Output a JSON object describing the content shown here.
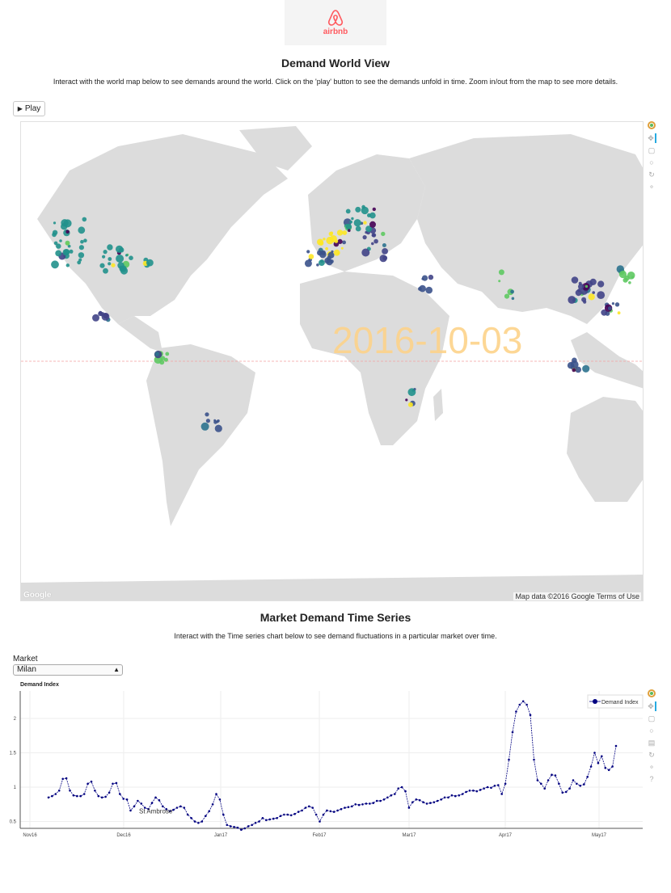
{
  "logo": {
    "text": "airbnb",
    "icon": "airbnb-belo-icon",
    "color": "#ff5a5f"
  },
  "world": {
    "title": "Demand World View",
    "description": "Interact with the world map below to see demands around the world. Click on the 'play' button to see the demands unfold in time. Zoom in/out from the map to see more details.",
    "play_label": "Play",
    "date": "2016-10-03",
    "credit": "Map data ©2016 Google  Terms of Use",
    "google": "Google",
    "tools": [
      "bokeh-logo-icon",
      "pan-icon",
      "box-zoom-icon",
      "wheel-zoom-icon",
      "reset-icon",
      "hover-icon"
    ]
  },
  "timeseries": {
    "title": "Market Demand Time Series",
    "description": "Interact with the Time series chart below to see demand fluctuations in a particular market over time.",
    "market_label": "Market",
    "market_value": "Milan",
    "tools": [
      "bokeh-logo-icon",
      "pan-icon",
      "box-zoom-icon",
      "wheel-zoom-icon",
      "save-icon",
      "reset-icon",
      "hover-icon",
      "help-icon"
    ]
  },
  "chart_data": {
    "type": "line",
    "title": "Demand Index",
    "series": [
      {
        "name": "Demand Index",
        "color": "#000080"
      }
    ],
    "annotation": "St Ambrose",
    "x_ticks": [
      "Nov16",
      "Dec16",
      "Jan17",
      "Feb17",
      "Mar17",
      "Apr17",
      "May17"
    ],
    "y_ticks": [
      "0.5",
      "1",
      "1.5",
      "2"
    ],
    "ylim": [
      0.4,
      2.4
    ],
    "x_start": "2016-11-08",
    "x_end": "2017-05-15",
    "values": [
      0.85,
      0.87,
      0.9,
      0.95,
      1.12,
      1.13,
      0.95,
      0.88,
      0.87,
      0.87,
      0.9,
      1.05,
      1.08,
      0.95,
      0.87,
      0.85,
      0.86,
      0.92,
      1.05,
      1.06,
      0.9,
      0.83,
      0.82,
      0.66,
      0.72,
      0.8,
      0.76,
      0.7,
      0.68,
      0.77,
      0.85,
      0.81,
      0.72,
      0.68,
      0.65,
      0.67,
      0.7,
      0.72,
      0.7,
      0.6,
      0.55,
      0.5,
      0.48,
      0.5,
      0.58,
      0.65,
      0.75,
      0.9,
      0.82,
      0.6,
      0.45,
      0.43,
      0.42,
      0.41,
      0.38,
      0.4,
      0.43,
      0.45,
      0.48,
      0.5,
      0.55,
      0.52,
      0.53,
      0.54,
      0.55,
      0.58,
      0.6,
      0.6,
      0.59,
      0.61,
      0.64,
      0.66,
      0.7,
      0.72,
      0.7,
      0.6,
      0.5,
      0.6,
      0.66,
      0.65,
      0.64,
      0.66,
      0.68,
      0.7,
      0.71,
      0.72,
      0.75,
      0.74,
      0.75,
      0.76,
      0.76,
      0.77,
      0.8,
      0.8,
      0.82,
      0.85,
      0.88,
      0.9,
      0.98,
      1.0,
      0.94,
      0.7,
      0.78,
      0.82,
      0.81,
      0.78,
      0.76,
      0.77,
      0.78,
      0.8,
      0.82,
      0.85,
      0.85,
      0.88,
      0.87,
      0.88,
      0.9,
      0.93,
      0.95,
      0.95,
      0.94,
      0.96,
      0.98,
      1.0,
      0.99,
      1.02,
      1.03,
      0.9,
      1.05,
      1.4,
      1.8,
      2.1,
      2.2,
      2.25,
      2.2,
      2.05,
      1.4,
      1.1,
      1.05,
      0.98,
      1.1,
      1.18,
      1.17,
      1.05,
      0.92,
      0.93,
      0.98,
      1.1,
      1.05,
      1.02,
      1.04,
      1.15,
      1.3,
      1.5,
      1.35,
      1.45,
      1.28,
      1.25,
      1.3,
      1.6
    ]
  }
}
